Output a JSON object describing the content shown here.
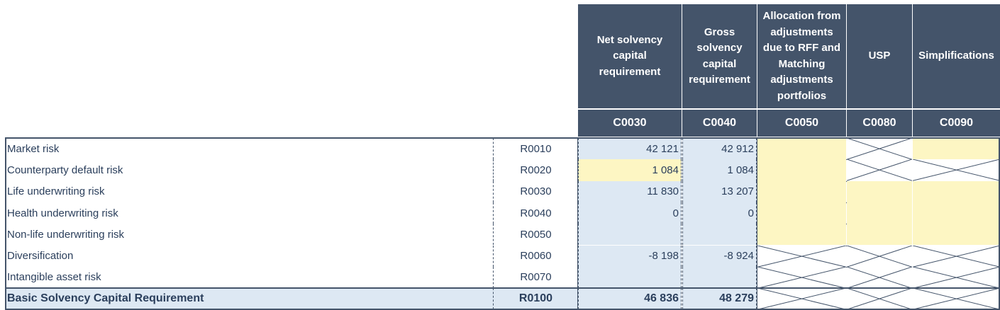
{
  "columns": [
    {
      "header": "Net solvency capital requirement",
      "code": "C0030"
    },
    {
      "header": "Gross solvency capital requirement",
      "code": "C0040"
    },
    {
      "header": "Allocation from adjustments due to RFF and Matching adjustments portfolios",
      "code": "C0050"
    },
    {
      "header": "USP",
      "code": "C0080"
    },
    {
      "header": "Simplifications",
      "code": "C0090"
    }
  ],
  "rows": [
    {
      "label": "Market risk",
      "code": "R0010",
      "net": "42 121",
      "gross": "42 912",
      "c0050": "yellow",
      "c0080": "hatched",
      "c0090": "yellow"
    },
    {
      "label": "Counterparty default risk",
      "code": "R0020",
      "net": "1 084",
      "gross": "1 084",
      "c0050": "yellow",
      "c0080": "hatched",
      "c0090": "hatched",
      "net_highlight": "yellow"
    },
    {
      "label": "Life underwriting risk",
      "code": "R0030",
      "net": "11 830",
      "gross": "13 207",
      "c0050": "yellow",
      "c0080": "yellow",
      "c0090": "yellow"
    },
    {
      "label": "Health underwriting risk",
      "code": "R0040",
      "net": "0",
      "gross": "0",
      "c0050": "yellow",
      "c0080": "yellow",
      "c0090": "yellow"
    },
    {
      "label": "Non-life underwriting risk",
      "code": "R0050",
      "net": "",
      "gross": "",
      "c0050": "yellow",
      "c0080": "yellow",
      "c0090": "yellow"
    },
    {
      "label": "Diversification",
      "code": "R0060",
      "net": "-8 198",
      "gross": "-8 924",
      "c0050": "hatched",
      "c0080": "hatched",
      "c0090": "hatched"
    },
    {
      "label": "Intangible asset risk",
      "code": "R0070",
      "net": "",
      "gross": "",
      "c0050": "hatched",
      "c0080": "hatched",
      "c0090": "hatched"
    },
    {
      "label": "Basic Solvency Capital Requirement",
      "code": "R0100",
      "net": "46 836",
      "gross": "48 279",
      "c0050": "hatched",
      "c0080": "hatched",
      "c0090": "hatched",
      "bold": true
    }
  ],
  "colors": {
    "header_bg": "#44546a",
    "input_yellow": "#fdf6c3",
    "calc_blue": "#dde8f3",
    "text": "#2b3f5c"
  }
}
